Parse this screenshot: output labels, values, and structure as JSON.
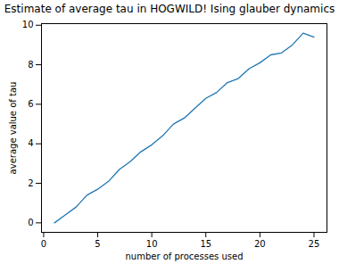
{
  "chart_data": {
    "type": "line",
    "title": "Estimate of average tau in HOGWILD! Ising glauber dynamics",
    "x_label": "number of processes used",
    "y_label": "average value of tau",
    "x": [
      1,
      2,
      3,
      4,
      5,
      6,
      7,
      8,
      9,
      10,
      11,
      12,
      13,
      14,
      15,
      16,
      17,
      18,
      19,
      20,
      21,
      22,
      23,
      24,
      25
    ],
    "series": [
      {
        "name": "average tau",
        "color": "#1f77b4",
        "values": [
          0,
          0.4,
          0.8,
          1.4,
          1.7,
          2.1,
          2.7,
          3.1,
          3.6,
          3.95,
          4.4,
          5.0,
          5.3,
          5.8,
          6.3,
          6.6,
          7.1,
          7.3,
          7.8,
          8.1,
          8.5,
          8.6,
          9.0,
          9.6,
          9.4
        ]
      }
    ],
    "xlim": [
      -0.2,
      26.2
    ],
    "ylim": [
      -0.48,
      10.08
    ],
    "xticks": [
      0,
      5,
      10,
      15,
      20,
      25
    ],
    "yticks": [
      0,
      2,
      4,
      6,
      8,
      10
    ],
    "grid": false
  }
}
